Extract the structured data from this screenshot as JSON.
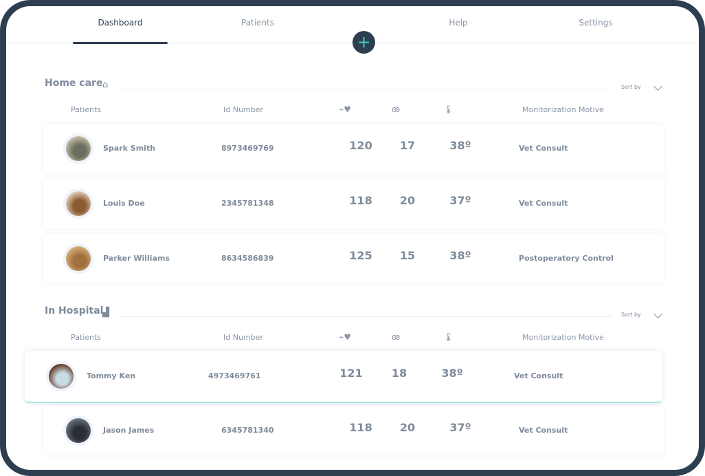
{
  "nav": {
    "tabs": [
      "Dashboard",
      "Patients",
      "Help",
      "Settings"
    ],
    "active": "Dashboard",
    "add_label": "+"
  },
  "columns": {
    "patients": "Patients",
    "id": "Id Number",
    "motive": "Monitorization Motive"
  },
  "sort_label": "Sort by",
  "sections": [
    {
      "title": "Home care",
      "icon": "home-icon",
      "rows": [
        {
          "name": "Spark Smith",
          "id": "8973469769",
          "heart_rate": "120",
          "resp": "17",
          "temp": "38º",
          "motive": "Vet Consult"
        },
        {
          "name": "Louis Doe",
          "id": "2345781348",
          "heart_rate": "118",
          "resp": "20",
          "temp": "37º",
          "motive": "Vet Consult"
        },
        {
          "name": "Parker Williams",
          "id": "8634586839",
          "heart_rate": "125",
          "resp": "15",
          "temp": "38º",
          "motive": "Postoperatory Control"
        }
      ]
    },
    {
      "title": "In Hospital",
      "icon": "hospital-icon",
      "rows": [
        {
          "name": "Tommy Ken",
          "id": "4973469761",
          "heart_rate": "121",
          "resp": "18",
          "temp": "38º",
          "motive": "Vet Consult"
        },
        {
          "name": "Jason James",
          "id": "6345781340",
          "heart_rate": "118",
          "resp": "20",
          "temp": "37º",
          "motive": "Vet Consult"
        }
      ]
    }
  ],
  "colors": {
    "primary": "#2d3e50",
    "accent": "#3fd1b5",
    "text": "#7f8b9b"
  }
}
